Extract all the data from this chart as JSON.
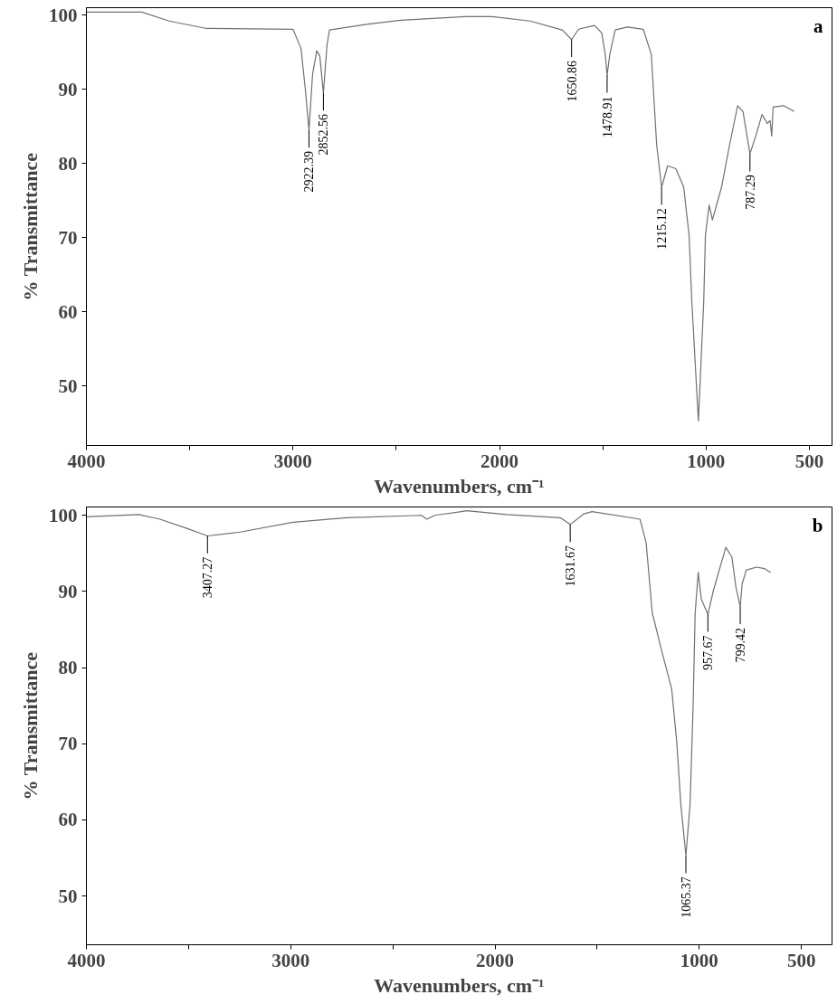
{
  "chart_data": [
    {
      "type": "line",
      "xlabel": "Wavenumbers, cm⁻¹",
      "ylabel": "% Transmittance",
      "color": "#707070",
      "x": [
        4000,
        3731,
        3600,
        3418,
        3000,
        2961,
        2940,
        2922.39,
        2905,
        2885,
        2870,
        2852.56,
        2835,
        2823,
        2635,
        2478,
        2165,
        2035,
        1852,
        1696,
        1650.86,
        1617,
        1540,
        1505,
        1488,
        1478.91,
        1466,
        1440,
        1382,
        1304,
        1265,
        1239,
        1215.12,
        1186,
        1146,
        1108,
        1082,
        1069,
        1037,
        1011,
        1003,
        985,
        969,
        925,
        886,
        847,
        821,
        787.29,
        755,
        729,
        703,
        690,
        682,
        675,
        625,
        573
      ],
      "values": [
        100.4,
        100.4,
        99.2,
        98.2,
        98.1,
        95.5,
        90,
        84.5,
        92,
        95.2,
        94.5,
        89.5,
        96,
        98,
        98.8,
        99.3,
        99.8,
        99.8,
        99.2,
        98,
        96.7,
        98.1,
        98.6,
        97.6,
        94.7,
        91.9,
        94.7,
        98,
        98.4,
        98.1,
        94.7,
        82.5,
        76.8,
        79.7,
        79.3,
        76.8,
        70.3,
        61.5,
        45.3,
        61.5,
        70.3,
        74.4,
        72.4,
        76.8,
        82.5,
        87.8,
        87,
        81.3,
        84.1,
        86.6,
        85.4,
        85.8,
        83.7,
        87.6,
        87.8,
        87
      ],
      "xlim": [
        4000,
        390
      ],
      "ylim": [
        42,
        101
      ],
      "xticks": [
        4000,
        {
          "value": 3500,
          "label": null
        },
        3000,
        {
          "value": 2500,
          "label": null
        },
        2000,
        {
          "value": 1500,
          "label": null
        },
        1000,
        500
      ],
      "yticks": [
        50,
        60,
        70,
        80,
        90,
        100
      ],
      "annotations": [
        "a",
        {
          "text": "2922.39",
          "x": 2922.39,
          "y": 84.5
        },
        {
          "text": "2852.56",
          "x": 2852.56,
          "y": 89.5
        },
        {
          "text": "1650.86",
          "x": 1650.86,
          "y": 96.7
        },
        {
          "text": "1478.91",
          "x": 1478.91,
          "y": 91.9
        },
        {
          "text": "1215.12",
          "x": 1215.12,
          "y": 76.8
        },
        {
          "text": "787.29",
          "x": 787.29,
          "y": 81.3
        }
      ]
    },
    {
      "type": "line",
      "xlabel": "Wavenumbers, cm⁻¹",
      "ylabel": "% Transmittance",
      "color": "#707070",
      "x": [
        4000,
        3744,
        3640,
        3509,
        3407.27,
        3248,
        2987,
        2726,
        2360,
        2334,
        2295,
        2138,
        1943,
        1681,
        1631.67,
        1564,
        1525,
        1290,
        1260,
        1230,
        1180,
        1135,
        1110,
        1090,
        1065.37,
        1045,
        1030,
        1020,
        1005,
        990,
        957.67,
        930,
        870,
        840,
        820,
        799.42,
        790,
        770,
        720,
        680,
        650
      ],
      "values": [
        99.8,
        100.1,
        99.5,
        98.3,
        97.3,
        97.8,
        99.1,
        99.7,
        100,
        99.5,
        100,
        100.6,
        100.1,
        99.7,
        98.8,
        100.2,
        100.5,
        99.5,
        96.4,
        87.2,
        81.8,
        77.2,
        70.2,
        62,
        55.3,
        62,
        75,
        87.2,
        92.5,
        89,
        87,
        90.2,
        95.8,
        94.5,
        90.5,
        88,
        91,
        92.8,
        93.2,
        93,
        92.5
      ],
      "xlim": [
        4000,
        350
      ],
      "ylim": [
        43.6,
        101.1
      ],
      "xticks": [
        4000,
        {
          "value": 3500,
          "label": null
        },
        3000,
        {
          "value": 2500,
          "label": null
        },
        2000,
        {
          "value": 1500,
          "label": null
        },
        1000,
        500
      ],
      "yticks": [
        50,
        60,
        70,
        80,
        90,
        100
      ],
      "annotations": [
        "b",
        {
          "text": "3407.27",
          "x": 3407.27,
          "y": 97.3
        },
        {
          "text": "1631.67",
          "x": 1631.67,
          "y": 98.8
        },
        {
          "text": "1065.37",
          "x": 1065.37,
          "y": 55.3
        },
        {
          "text": "957.67",
          "x": 957.67,
          "y": 87.0
        },
        {
          "text": "799.42",
          "x": 799.42,
          "y": 88.0
        }
      ]
    }
  ]
}
